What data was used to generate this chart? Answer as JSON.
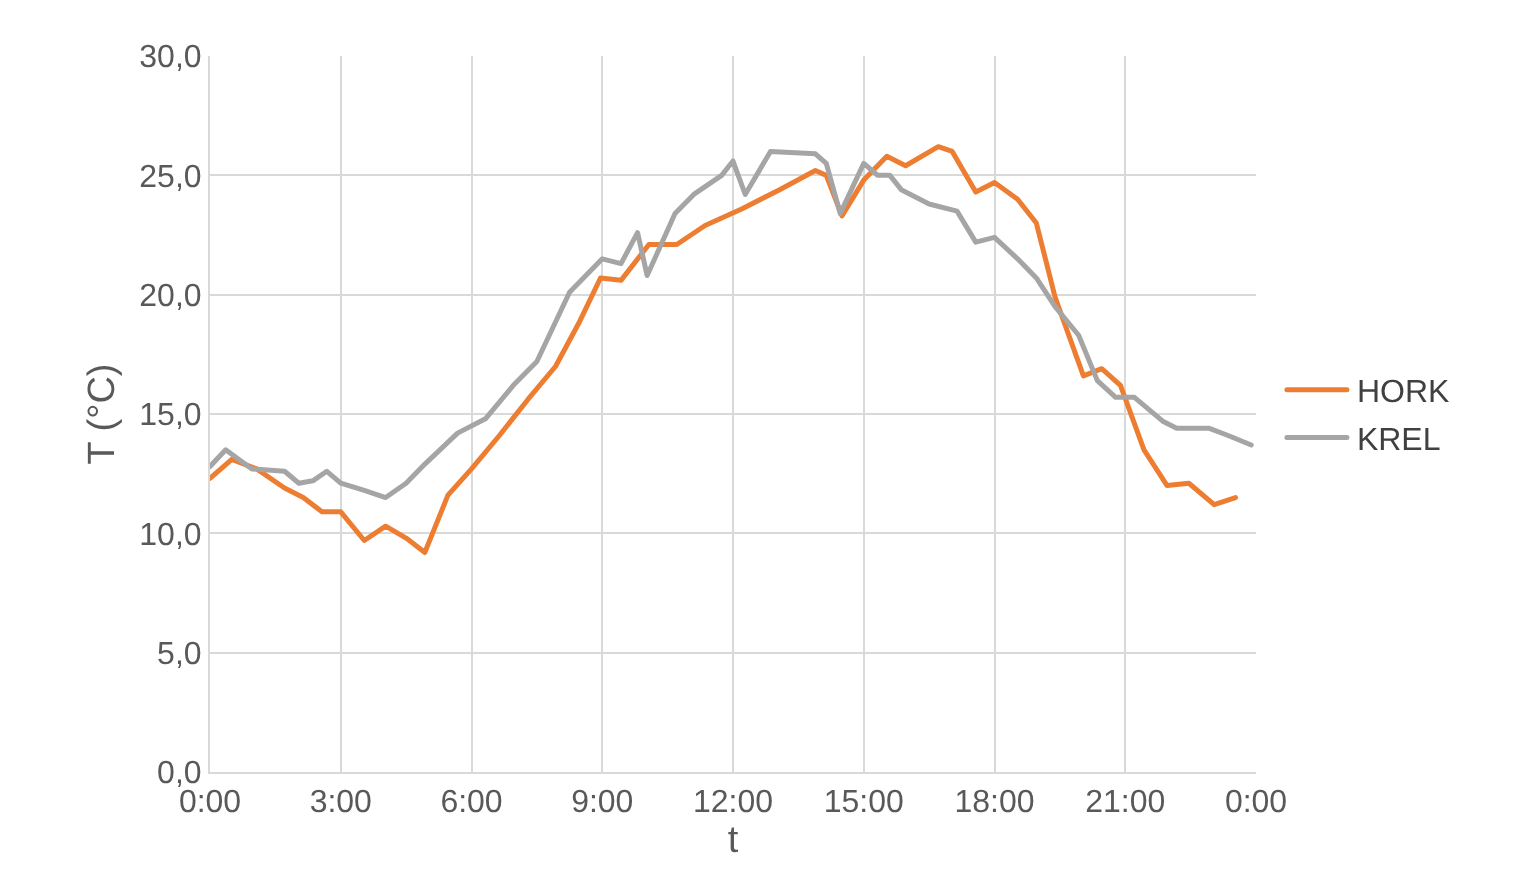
{
  "chart_data": {
    "type": "line",
    "xlabel": "t",
    "ylabel": "T (°C)",
    "xlim": [
      0,
      24
    ],
    "ylim": [
      0,
      30
    ],
    "xticks": [
      {
        "value": 0,
        "label": "0:00"
      },
      {
        "value": 3,
        "label": "3:00"
      },
      {
        "value": 6,
        "label": "6:00"
      },
      {
        "value": 9,
        "label": "9:00"
      },
      {
        "value": 12,
        "label": "12:00"
      },
      {
        "value": 15,
        "label": "15:00"
      },
      {
        "value": 18,
        "label": "18:00"
      },
      {
        "value": 21,
        "label": "21:00"
      },
      {
        "value": 24,
        "label": "0:00"
      }
    ],
    "yticks": [
      {
        "value": 0,
        "label": "0,0"
      },
      {
        "value": 5,
        "label": "5,0"
      },
      {
        "value": 10,
        "label": "10,0"
      },
      {
        "value": 15,
        "label": "15,0"
      },
      {
        "value": 20,
        "label": "20,0"
      },
      {
        "value": 25,
        "label": "25,0"
      },
      {
        "value": 30,
        "label": "30,0"
      }
    ],
    "grid": true,
    "legend": "right",
    "marker": "none",
    "line_style": "solid",
    "series": [
      {
        "name": "HORK",
        "color": "#ed7d31",
        "x": [
          0,
          0.5,
          1.07,
          1.71,
          2.14,
          2.57,
          3.0,
          3.54,
          4.03,
          4.5,
          4.93,
          5.46,
          6.0,
          6.64,
          7.29,
          7.93,
          8.46,
          8.96,
          9.43,
          10.07,
          10.71,
          11.36,
          12.21,
          13.07,
          13.89,
          14.14,
          14.5,
          15.0,
          15.53,
          15.96,
          16.71,
          17.03,
          17.57,
          18.0,
          18.53,
          18.96,
          19.39,
          20.04,
          20.46,
          20.89,
          21.43,
          21.96,
          22.46,
          23.04,
          23.53
        ],
        "values": [
          12.3,
          13.1,
          12.7,
          11.9,
          11.5,
          10.9,
          10.9,
          9.7,
          10.3,
          9.8,
          9.2,
          11.6,
          12.7,
          14.1,
          15.6,
          17.0,
          18.8,
          20.7,
          20.6,
          22.1,
          22.1,
          22.9,
          23.6,
          24.4,
          25.2,
          25.0,
          23.3,
          24.8,
          25.8,
          25.4,
          26.2,
          26.0,
          24.3,
          24.7,
          24.0,
          23.0,
          19.9,
          16.6,
          16.9,
          16.2,
          13.5,
          12.0,
          12.1,
          11.2,
          11.5
        ]
      },
      {
        "name": "KREL",
        "color": "#a5a5a5",
        "x": [
          0,
          0.36,
          0.96,
          1.71,
          2.04,
          2.36,
          2.68,
          3.0,
          3.54,
          4.03,
          4.5,
          4.93,
          5.68,
          6.32,
          6.96,
          7.5,
          8.25,
          9.0,
          9.43,
          9.81,
          10.03,
          10.67,
          11.1,
          11.74,
          12.0,
          12.28,
          12.86,
          13.89,
          14.14,
          14.46,
          15.0,
          15.32,
          15.6,
          15.86,
          16.5,
          17.14,
          17.57,
          18.0,
          18.53,
          18.96,
          19.39,
          19.93,
          20.36,
          20.78,
          21.21,
          21.86,
          22.18,
          22.93,
          23.36,
          23.89
        ],
        "values": [
          12.8,
          13.5,
          12.7,
          12.6,
          12.1,
          12.2,
          12.6,
          12.1,
          11.8,
          11.5,
          12.1,
          12.9,
          14.2,
          14.8,
          16.2,
          17.2,
          20.1,
          21.5,
          21.3,
          22.6,
          20.8,
          23.4,
          24.2,
          25.0,
          25.6,
          24.2,
          26.0,
          25.9,
          25.5,
          23.4,
          25.5,
          25.0,
          25.0,
          24.4,
          23.8,
          23.5,
          22.2,
          22.4,
          21.5,
          20.7,
          19.5,
          18.3,
          16.4,
          15.7,
          15.7,
          14.7,
          14.4,
          14.4,
          14.1,
          13.7
        ]
      }
    ]
  }
}
